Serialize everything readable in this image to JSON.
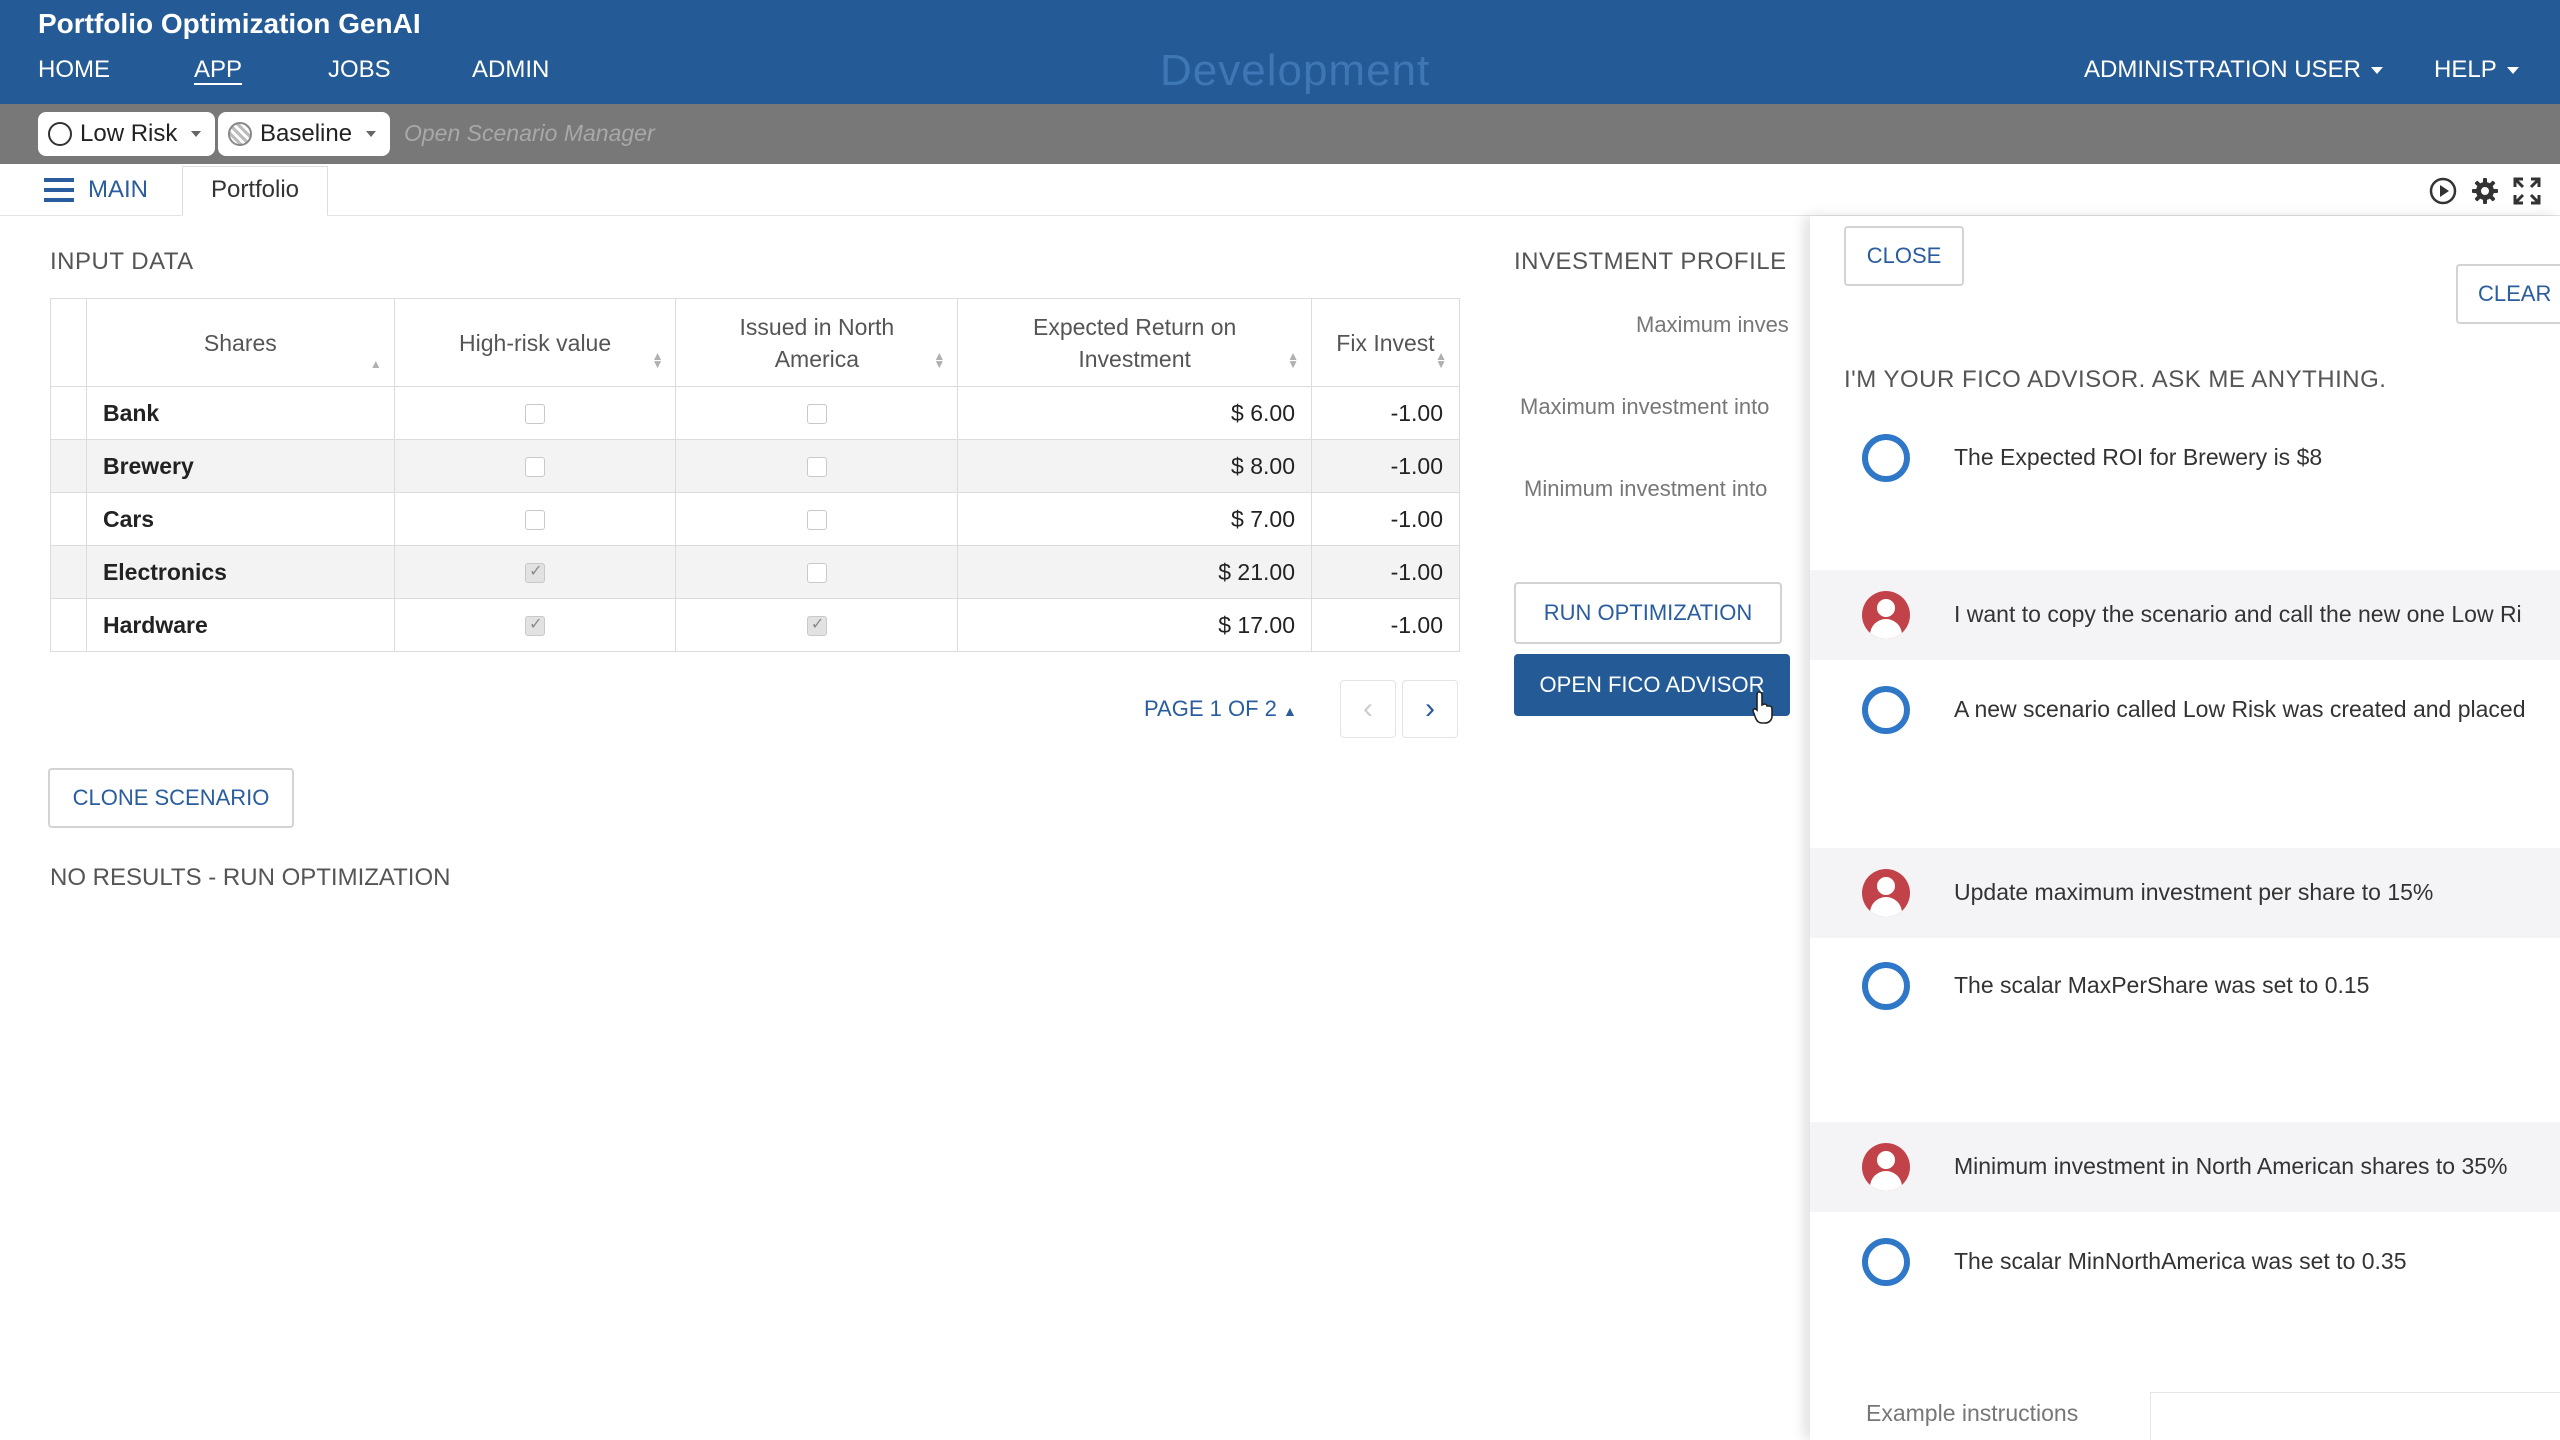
{
  "app": {
    "title": "Portfolio Optimization GenAI",
    "environment": "Development"
  },
  "nav": {
    "items": [
      "HOME",
      "APP",
      "JOBS",
      "ADMIN"
    ],
    "active": "APP",
    "user_menu": "ADMINISTRATION USER",
    "help_menu": "HELP"
  },
  "scenarios": {
    "primary": "Low Risk",
    "secondary": "Baseline",
    "manager_link": "Open Scenario Manager"
  },
  "tabs": {
    "main": "MAIN",
    "active": "Portfolio"
  },
  "toolbar_icons": [
    "play-icon",
    "gear-icon",
    "fullscreen-icon"
  ],
  "input_data": {
    "title": "INPUT DATA",
    "columns": [
      "Shares",
      "High-risk value",
      "Issued in North America",
      "Expected Return on Investment",
      "Fix Invest"
    ],
    "rows": [
      {
        "share": "Bank",
        "high_risk": false,
        "north_america": false,
        "expected_return": "$ 6.00",
        "fix_invest": "-1.00"
      },
      {
        "share": "Brewery",
        "high_risk": false,
        "north_america": false,
        "expected_return": "$ 8.00",
        "fix_invest": "-1.00"
      },
      {
        "share": "Cars",
        "high_risk": false,
        "north_america": false,
        "expected_return": "$ 7.00",
        "fix_invest": "-1.00"
      },
      {
        "share": "Electronics",
        "high_risk": true,
        "north_america": false,
        "expected_return": "$ 21.00",
        "fix_invest": "-1.00"
      },
      {
        "share": "Hardware",
        "high_risk": true,
        "north_america": true,
        "expected_return": "$ 17.00",
        "fix_invest": "-1.00"
      }
    ],
    "pager": "PAGE 1 OF 2"
  },
  "clone_button": "CLONE SCENARIO",
  "results_message": "NO RESULTS - RUN OPTIMIZATION",
  "investment_profile": {
    "title": "INVESTMENT PROFILE",
    "labels": [
      "Maximum inves",
      "Maximum investment into",
      "Minimum investment into"
    ],
    "run_button": "RUN OPTIMIZATION",
    "advisor_button": "OPEN FICO ADVISOR"
  },
  "advisor": {
    "close_button": "CLOSE",
    "clear_button": "CLEAR",
    "greeting": "I'M YOUR FICO ADVISOR. ASK ME ANYTHING.",
    "messages": [
      {
        "role": "bot",
        "text": "The Expected ROI for Brewery is $8"
      },
      {
        "role": "user",
        "text": "I want to copy the scenario and call the new one Low Ri"
      },
      {
        "role": "bot",
        "text": "A new scenario called Low Risk was created and placed"
      },
      {
        "role": "user",
        "text": "Update maximum investment per share to 15%"
      },
      {
        "role": "bot",
        "text": "The scalar MaxPerShare was set to 0.15"
      },
      {
        "role": "user",
        "text": "Minimum investment in North American shares to 35%"
      },
      {
        "role": "bot",
        "text": "The scalar MinNorthAmerica was set to 0.35"
      }
    ],
    "footer_label": "Example instructions"
  }
}
